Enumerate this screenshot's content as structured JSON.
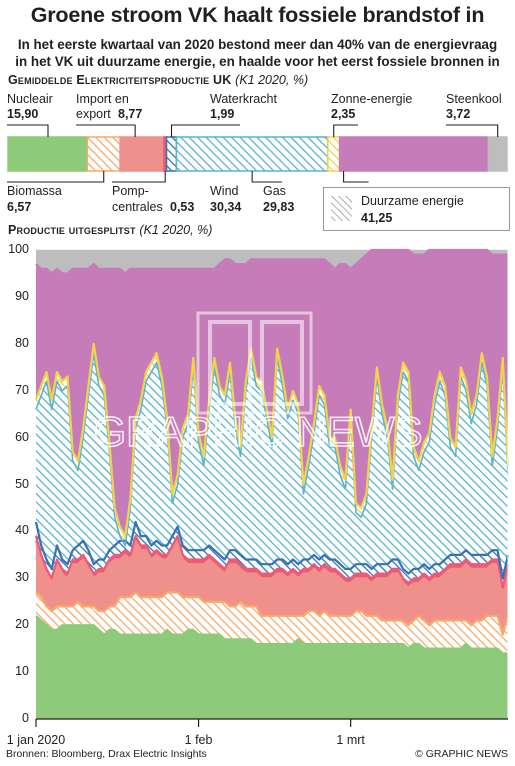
{
  "header": {
    "title": "Groene stroom VK haalt fossiele brandstof in",
    "subtitle_line1": "In het eerste kwartaal van 2020 bestond meer dan 40% van de energievraag",
    "subtitle_line2": "in het VK uit duurzame energie, en haalde voor het eerst fossiele bronnen in"
  },
  "bar_section": {
    "title": "Gemiddelde elektriciteitsproductie UK",
    "period": "(K1 2020, %)",
    "segments": [
      {
        "name": "Nucleair",
        "label": "Nucleair",
        "value": 15.9,
        "value_text": "15,90",
        "color": "#8dcb7a",
        "renewable": false
      },
      {
        "name": "Biomassa",
        "label": "Biomassa",
        "value": 6.57,
        "value_text": "6,57",
        "color": "#f7a96a",
        "renewable": true
      },
      {
        "name": "Import en export",
        "label": "Import en export",
        "value": 8.77,
        "value_text": "8,77",
        "color": "#f0908c",
        "renewable": false
      },
      {
        "name": "Pompcentrales",
        "label": "Pomp-centrales",
        "value": 0.53,
        "value_text": "0,53",
        "color": "#ec5a78",
        "renewable": false
      },
      {
        "name": "Waterkracht",
        "label": "Waterkracht",
        "value": 1.99,
        "value_text": "1,99",
        "color": "#3372b6",
        "renewable": true
      },
      {
        "name": "Wind",
        "label": "Wind",
        "value": 30.34,
        "value_text": "30,34",
        "color": "#58b3d0",
        "renewable": true
      },
      {
        "name": "Zonne-energie",
        "label": "Zonne-energie",
        "value": 2.35,
        "value_text": "2,35",
        "color": "#f2d34a",
        "renewable": true
      },
      {
        "name": "Gas",
        "label": "Gas",
        "value": 29.83,
        "value_text": "29,83",
        "color": "#c57cb8",
        "renewable": false
      },
      {
        "name": "Steenkool",
        "label": "Steenkool",
        "value": 3.72,
        "value_text": "3,72",
        "color": "#bdbdbd",
        "renewable": false
      }
    ],
    "labels_top": {
      "nucleair": "Nucleair",
      "import_l1": "Import en",
      "import_l2": "export",
      "waterkracht": "Waterkracht",
      "zonne": "Zonne-energie",
      "steenkool": "Steenkool"
    },
    "labels_bottom": {
      "biomassa": "Biomassa",
      "pomp_l1": "Pomp-",
      "pomp_l2": "centrales",
      "wind": "Wind",
      "gas": "Gas"
    },
    "legend": {
      "label": "Duurzame energie",
      "value_text": "41,25"
    }
  },
  "chart_section": {
    "title": "Productie uitgesplitst",
    "period": "(K1 2020, %)"
  },
  "chart_data": {
    "type": "area",
    "title": "Productie uitgesplitst",
    "ylim": [
      0,
      100
    ],
    "yticks": [
      0,
      10,
      20,
      30,
      40,
      50,
      60,
      70,
      80,
      90,
      100
    ],
    "xticks": [
      "1 jan 2020",
      "1 feb",
      "1 mrt"
    ],
    "xtick_days": [
      1,
      32,
      61
    ],
    "x_start_day": 1,
    "x_end_day": 91,
    "stack_order": [
      "Nucleair",
      "Biomassa",
      "Import en export",
      "Pompcentrales",
      "Waterkracht",
      "Wind",
      "Zonne-energie",
      "Gas",
      "Steenkool"
    ],
    "boundaries": {
      "nucleair_top": [
        22,
        21,
        20,
        19,
        19,
        20,
        20,
        20,
        20,
        20,
        20,
        20,
        19,
        18,
        19,
        19,
        18,
        18,
        18,
        18,
        18,
        18,
        18,
        18,
        18,
        19,
        18,
        18,
        18,
        19,
        19,
        18,
        18,
        18,
        18,
        18,
        17,
        17,
        17,
        17,
        17,
        17,
        16,
        16,
        16,
        16,
        16,
        16,
        16,
        16,
        17,
        16,
        16,
        16,
        16,
        16,
        16,
        16,
        16,
        16,
        16,
        16,
        16,
        16,
        16,
        16,
        16,
        16,
        16,
        16,
        16,
        15,
        16,
        16,
        15,
        15,
        15,
        15,
        15,
        15,
        15,
        15,
        16,
        15,
        15,
        15,
        15,
        15,
        15,
        14,
        14
      ],
      "biomassa_top": [
        27,
        26,
        24,
        23,
        24,
        24,
        24,
        24,
        25,
        24,
        24,
        24,
        23,
        23,
        24,
        24,
        26,
        26,
        26,
        27,
        26,
        26,
        26,
        26,
        26,
        27,
        27,
        27,
        26,
        26,
        26,
        26,
        25,
        25,
        25,
        25,
        25,
        24,
        24,
        25,
        24,
        24,
        24,
        22,
        22,
        22,
        22,
        22,
        22,
        22,
        22,
        22,
        23,
        23,
        22,
        23,
        22,
        22,
        22,
        22,
        22,
        23,
        23,
        22,
        22,
        22,
        21,
        21,
        21,
        21,
        21,
        20,
        21,
        22,
        21,
        20,
        21,
        21,
        21,
        21,
        21,
        21,
        21,
        20,
        21,
        21,
        22,
        22,
        22,
        18,
        22
      ],
      "import_top": [
        38,
        34,
        31,
        29,
        33,
        31,
        30,
        33,
        33,
        34,
        32,
        30,
        31,
        31,
        33,
        34,
        34,
        35,
        34,
        38,
        36,
        36,
        34,
        35,
        34,
        34,
        36,
        38,
        34,
        33,
        33,
        33,
        33,
        34,
        33,
        32,
        31,
        33,
        33,
        32,
        31,
        31,
        31,
        30,
        30,
        30,
        31,
        31,
        30,
        31,
        30,
        31,
        31,
        32,
        31,
        32,
        31,
        31,
        30,
        29,
        29,
        30,
        30,
        30,
        29,
        30,
        30,
        30,
        31,
        31,
        29,
        28,
        29,
        29,
        30,
        29,
        30,
        30,
        31,
        32,
        32,
        32,
        33,
        32,
        32,
        32,
        32,
        33,
        33,
        27,
        32
      ],
      "pomp_top": [
        39,
        35,
        32,
        30,
        34,
        32,
        31,
        34,
        34,
        35,
        33,
        31,
        32,
        32,
        34,
        35,
        35,
        36,
        35,
        39,
        37,
        37,
        35,
        36,
        35,
        35,
        37,
        39,
        35,
        34,
        34,
        34,
        34,
        35,
        34,
        33,
        32,
        34,
        34,
        33,
        32,
        32,
        32,
        31,
        31,
        31,
        32,
        32,
        31,
        32,
        31,
        32,
        32,
        33,
        32,
        33,
        32,
        32,
        31,
        30,
        30,
        31,
        31,
        31,
        30,
        31,
        31,
        31,
        32,
        32,
        30,
        29,
        30,
        30,
        31,
        30,
        31,
        31,
        32,
        33,
        33,
        33,
        34,
        33,
        33,
        33,
        33,
        34,
        34,
        28,
        33
      ],
      "water_top": [
        42,
        37,
        34,
        32,
        37,
        34,
        33,
        36,
        37,
        38,
        36,
        33,
        34,
        34,
        36,
        37,
        38,
        38,
        37,
        42,
        39,
        39,
        37,
        38,
        37,
        37,
        39,
        41,
        37,
        36,
        36,
        36,
        36,
        37,
        36,
        35,
        34,
        36,
        36,
        35,
        34,
        34,
        34,
        33,
        33,
        33,
        34,
        34,
        33,
        34,
        33,
        34,
        34,
        35,
        34,
        35,
        34,
        34,
        33,
        32,
        32,
        33,
        33,
        33,
        32,
        33,
        33,
        33,
        34,
        34,
        32,
        31,
        32,
        32,
        33,
        32,
        33,
        33,
        34,
        35,
        35,
        35,
        36,
        35,
        35,
        35,
        35,
        36,
        36,
        30,
        35
      ],
      "wind_top": [
        66,
        69,
        72,
        66,
        72,
        70,
        71,
        55,
        53,
        60,
        69,
        78,
        71,
        69,
        57,
        43,
        39,
        37,
        45,
        62,
        66,
        72,
        74,
        76,
        71,
        62,
        46,
        50,
        60,
        63,
        75,
        59,
        54,
        66,
        75,
        69,
        67,
        74,
        62,
        56,
        70,
        77,
        71,
        70,
        64,
        58,
        77,
        71,
        64,
        68,
        65,
        48,
        54,
        61,
        69,
        67,
        58,
        58,
        52,
        49,
        64,
        44,
        43,
        46,
        60,
        73,
        65,
        60,
        49,
        67,
        74,
        72,
        56,
        53,
        57,
        59,
        67,
        72,
        69,
        58,
        56,
        73,
        70,
        63,
        67,
        76,
        71,
        54,
        62,
        75,
        52
      ],
      "solar_top": [
        68,
        71,
        74,
        68,
        74,
        72,
        73,
        57,
        55,
        62,
        71,
        80,
        73,
        71,
        59,
        45,
        41,
        39,
        47,
        64,
        68,
        74,
        76,
        78,
        73,
        64,
        48,
        52,
        62,
        65,
        77,
        61,
        56,
        68,
        77,
        71,
        69,
        76,
        64,
        58,
        72,
        79,
        73,
        72,
        66,
        60,
        79,
        73,
        66,
        70,
        67,
        50,
        56,
        63,
        71,
        69,
        60,
        60,
        54,
        51,
        66,
        46,
        45,
        48,
        62,
        75,
        67,
        62,
        51,
        69,
        76,
        74,
        58,
        55,
        59,
        61,
        69,
        74,
        71,
        60,
        58,
        75,
        72,
        65,
        69,
        78,
        73,
        56,
        64,
        77,
        54
      ],
      "gas_top": [
        97,
        96,
        96,
        95,
        96,
        95,
        95,
        96,
        96,
        96,
        96,
        97,
        96,
        96,
        96,
        96,
        96,
        95,
        96,
        96,
        96,
        96,
        96,
        96,
        96,
        96,
        96,
        96,
        96,
        96,
        96,
        96,
        96,
        96,
        96,
        97,
        98,
        98,
        97,
        97,
        97,
        98,
        98,
        98,
        98,
        98,
        98,
        98,
        98,
        98,
        98,
        98,
        98,
        98,
        98,
        98,
        97,
        96,
        97,
        97,
        96,
        97,
        98,
        99,
        100,
        100,
        100,
        100,
        100,
        100,
        100,
        100,
        99,
        99,
        99,
        100,
        100,
        100,
        100,
        100,
        100,
        100,
        100,
        100,
        100,
        100,
        100,
        99,
        99,
        99,
        99
      ]
    }
  },
  "watermark": "GRAPHIC NEWS",
  "footer": {
    "sources": "Bronnen: Bloomberg, Drax Electric Insights",
    "credit": "© GRAPHIC NEWS"
  }
}
